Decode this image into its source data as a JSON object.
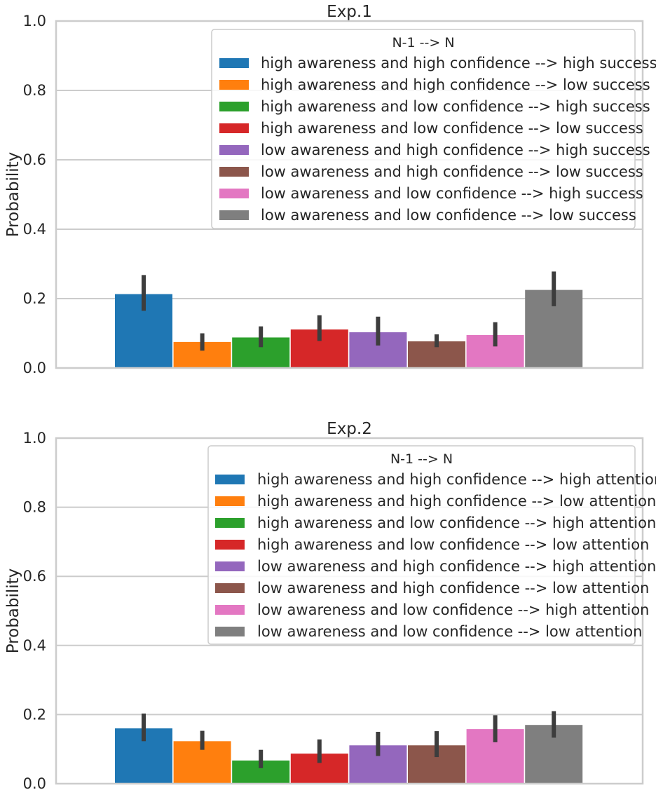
{
  "chart_data": [
    {
      "type": "bar",
      "title": "Exp.1",
      "xlabel": "",
      "ylabel": "Probability",
      "ylim": [
        0,
        1.0
      ],
      "yticks": [
        "0.0",
        "0.2",
        "0.4",
        "0.6",
        "0.8",
        "1.0"
      ],
      "grid": true,
      "legend": {
        "title": "N-1 --> N",
        "placement": "top-right"
      },
      "series": [
        {
          "name": "high awareness and high confidence --> high success",
          "value": 0.213,
          "ci": [
            0.165,
            0.268
          ],
          "color": "#1f77b4"
        },
        {
          "name": "high awareness and high confidence --> low success",
          "value": 0.075,
          "ci": [
            0.05,
            0.1
          ],
          "color": "#ff7f0e"
        },
        {
          "name": "high awareness and low confidence --> high success",
          "value": 0.088,
          "ci": [
            0.06,
            0.12
          ],
          "color": "#2ca02c"
        },
        {
          "name": "high awareness and low confidence --> low success",
          "value": 0.111,
          "ci": [
            0.078,
            0.152
          ],
          "color": "#d62728"
        },
        {
          "name": "low awareness and high confidence --> high success",
          "value": 0.103,
          "ci": [
            0.065,
            0.148
          ],
          "color": "#9467bd"
        },
        {
          "name": "low awareness and high confidence --> low success",
          "value": 0.077,
          "ci": [
            0.06,
            0.097
          ],
          "color": "#8c564b"
        },
        {
          "name": "low awareness and low confidence --> high success",
          "value": 0.095,
          "ci": [
            0.062,
            0.132
          ],
          "color": "#e377c2"
        },
        {
          "name": "low awareness and low confidence --> low success",
          "value": 0.225,
          "ci": [
            0.178,
            0.278
          ],
          "color": "#7f7f7f"
        }
      ]
    },
    {
      "type": "bar",
      "title": "Exp.2",
      "xlabel": "",
      "ylabel": "Probability",
      "ylim": [
        0,
        1.0
      ],
      "yticks": [
        "0.0",
        "0.2",
        "0.4",
        "0.6",
        "0.8",
        "1.0"
      ],
      "grid": true,
      "legend": {
        "title": "N-1 --> N",
        "placement": "top-right"
      },
      "series": [
        {
          "name": "high awareness and high confidence --> high attention",
          "value": 0.16,
          "ci": [
            0.123,
            0.203
          ],
          "color": "#1f77b4"
        },
        {
          "name": "high awareness and high confidence --> low attention",
          "value": 0.123,
          "ci": [
            0.098,
            0.153
          ],
          "color": "#ff7f0e"
        },
        {
          "name": "high awareness and low confidence --> high attention",
          "value": 0.067,
          "ci": [
            0.045,
            0.098
          ],
          "color": "#2ca02c"
        },
        {
          "name": "high awareness and low confidence --> low attention",
          "value": 0.087,
          "ci": [
            0.06,
            0.128
          ],
          "color": "#d62728"
        },
        {
          "name": "low awareness and high confidence --> high attention",
          "value": 0.111,
          "ci": [
            0.08,
            0.15
          ],
          "color": "#9467bd"
        },
        {
          "name": "low awareness and high confidence --> low attention",
          "value": 0.111,
          "ci": [
            0.077,
            0.152
          ],
          "color": "#8c564b"
        },
        {
          "name": "low awareness and low confidence --> high attention",
          "value": 0.158,
          "ci": [
            0.12,
            0.198
          ],
          "color": "#e377c2"
        },
        {
          "name": "low awareness and low confidence --> low attention",
          "value": 0.17,
          "ci": [
            0.133,
            0.21
          ],
          "color": "#7f7f7f"
        }
      ]
    }
  ]
}
